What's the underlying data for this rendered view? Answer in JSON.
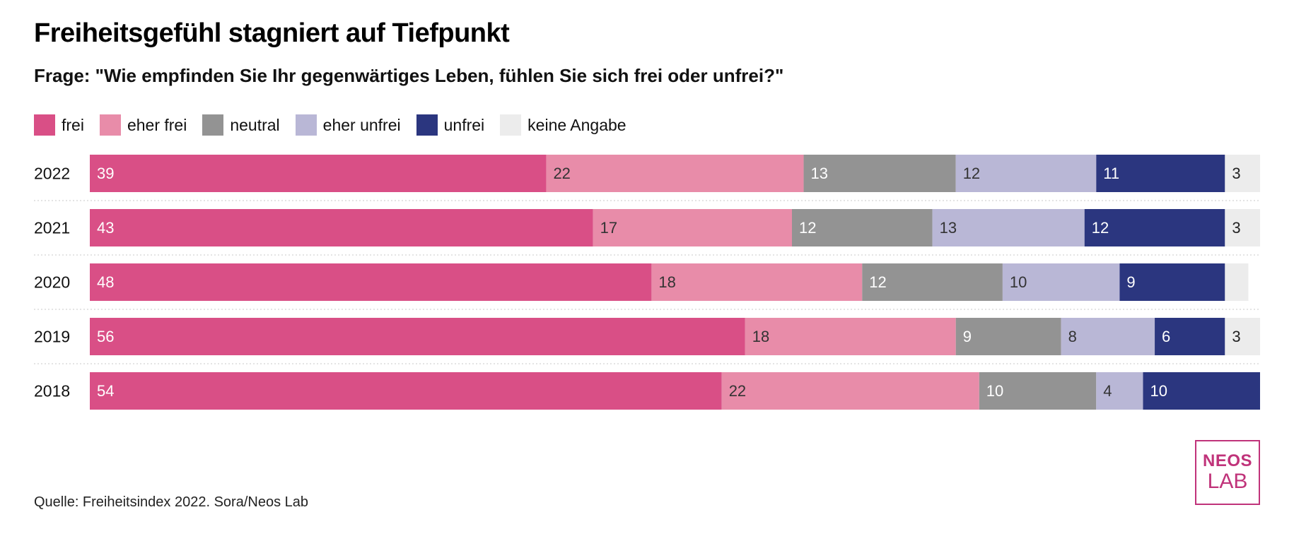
{
  "chart_data": {
    "type": "bar",
    "orientation": "horizontal",
    "stacked": true,
    "title": "Freiheitsgefühl stagniert auf Tiefpunkt",
    "subtitle": "Frage: \"Wie empfinden Sie Ihr gegenwärtiges Leben, fühlen Sie sich frei oder unfrei?\"",
    "categories": [
      "2022",
      "2021",
      "2020",
      "2019",
      "2018"
    ],
    "series": [
      {
        "name": "frei",
        "color": "#d94f86",
        "label_color": "#ffffff",
        "values": [
          39,
          43,
          48,
          56,
          54
        ]
      },
      {
        "name": "eher frei",
        "color": "#e88ca9",
        "label_color": "#333333",
        "values": [
          22,
          17,
          18,
          18,
          22
        ]
      },
      {
        "name": "neutral",
        "color": "#939393",
        "label_color": "#ffffff",
        "values": [
          13,
          12,
          12,
          9,
          10
        ]
      },
      {
        "name": "eher unfrei",
        "color": "#b9b7d6",
        "label_color": "#333333",
        "values": [
          12,
          13,
          10,
          8,
          4
        ]
      },
      {
        "name": "unfrei",
        "color": "#2b367f",
        "label_color": "#ffffff",
        "values": [
          11,
          12,
          9,
          6,
          10
        ]
      },
      {
        "name": "keine Angabe",
        "color": "#ececec",
        "label_color": "#222222",
        "values": [
          3,
          3,
          2,
          3,
          0
        ]
      }
    ],
    "value_labels": [
      [
        "39",
        "22",
        "13",
        "12",
        "11",
        "3"
      ],
      [
        "43",
        "17",
        "12",
        "13",
        "12",
        "3"
      ],
      [
        "48",
        "18",
        "12",
        "10",
        "9",
        ""
      ],
      [
        "56",
        "18",
        "9",
        "8",
        "6",
        "3"
      ],
      [
        "54",
        "22",
        "10",
        "4",
        "10",
        ""
      ]
    ],
    "xlim": [
      0,
      100
    ],
    "grid": false,
    "legend_position": "top-left"
  },
  "source": "Quelle: Freiheitsindex 2022. Sora/Neos Lab",
  "logo": {
    "line1": "NEOS",
    "line2": "LAB"
  }
}
